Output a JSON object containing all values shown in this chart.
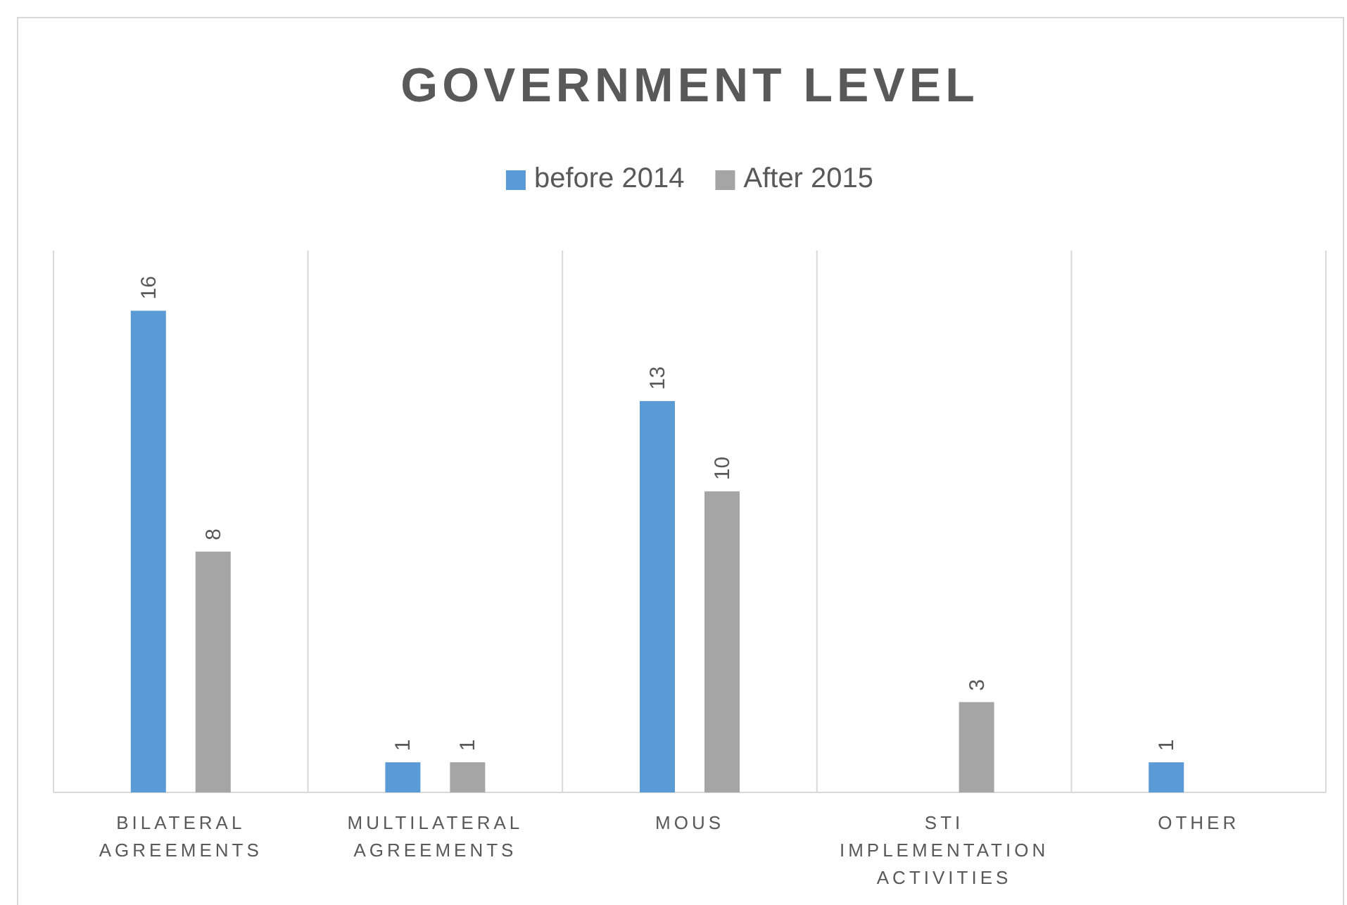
{
  "chart_data": {
    "type": "bar",
    "title": "GOVERNMENT LEVEL",
    "categories": [
      "BILATERAL AGREEMENTS",
      "MULTILATERAL AGREEMENTS",
      "MOUS",
      "STI IMPLEMENTATION ACTIVITIES",
      "OTHER"
    ],
    "series": [
      {
        "name": "before 2014",
        "color": "#5b9bd5",
        "values": [
          16,
          1,
          13,
          null,
          1
        ]
      },
      {
        "name": "After 2015",
        "color": "#a5a5a5",
        "values": [
          8,
          1,
          10,
          3,
          null
        ]
      }
    ],
    "data_labels": true,
    "legend": "top"
  }
}
